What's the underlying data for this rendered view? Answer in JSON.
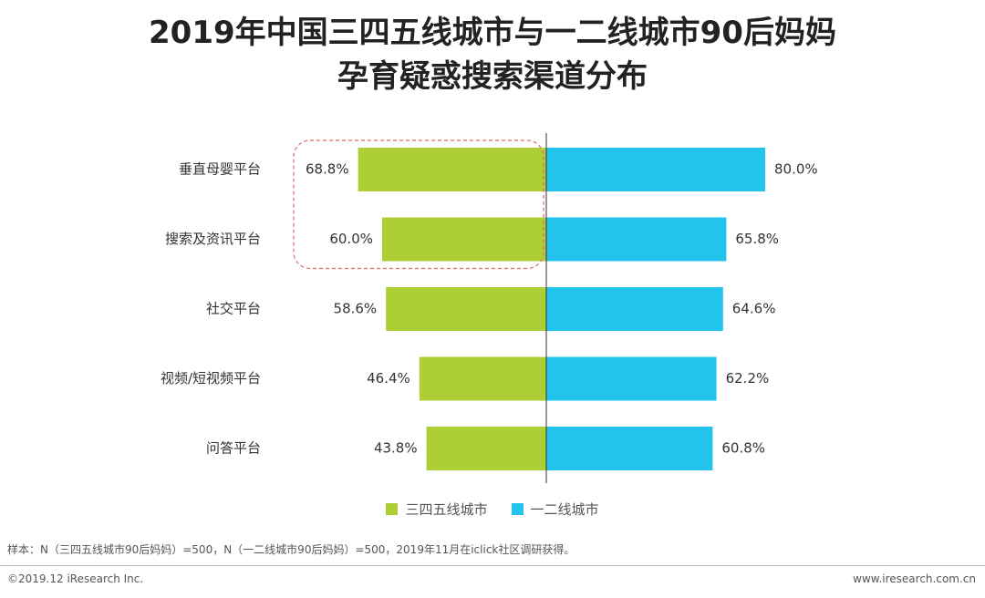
{
  "title": {
    "line1": "2019年中国三四五线城市与一二线城市90后妈妈",
    "line2": "孕育疑惑搜索渠道分布"
  },
  "chart_data": {
    "type": "bar",
    "orientation": "horizontal-butterfly",
    "categories": [
      "垂直母婴平台",
      "搜索及资讯平台",
      "社交平台",
      "视频/短视频平台",
      "问答平台"
    ],
    "series": [
      {
        "name": "三四五线城市",
        "values": [
          68.8,
          60.0,
          58.6,
          46.4,
          43.8
        ],
        "color": "#adcf35",
        "side": "left"
      },
      {
        "name": "一二线城市",
        "values": [
          80.0,
          65.8,
          64.6,
          62.2,
          60.8
        ],
        "color": "#22c4ee",
        "side": "right"
      }
    ],
    "value_format": "%",
    "highlight": {
      "categories": [
        "垂直母婴平台",
        "搜索及资讯平台"
      ],
      "series": "三四五线城市",
      "style": "dashed-rounded-box",
      "color": "#e06a6a"
    },
    "legend_position": "bottom",
    "grid": false
  },
  "legend": [
    {
      "label": "三四五线城市",
      "color": "#adcf35"
    },
    {
      "label": "一二线城市",
      "color": "#22c4ee"
    }
  ],
  "note": "样本：N（三四五线城市90后妈妈）=500，N（一二线城市90后妈妈）=500，2019年11月在iclick社区调研获得。",
  "footer": {
    "copyright": "©2019.12 iResearch Inc.",
    "site": "www.iresearch.com.cn"
  }
}
